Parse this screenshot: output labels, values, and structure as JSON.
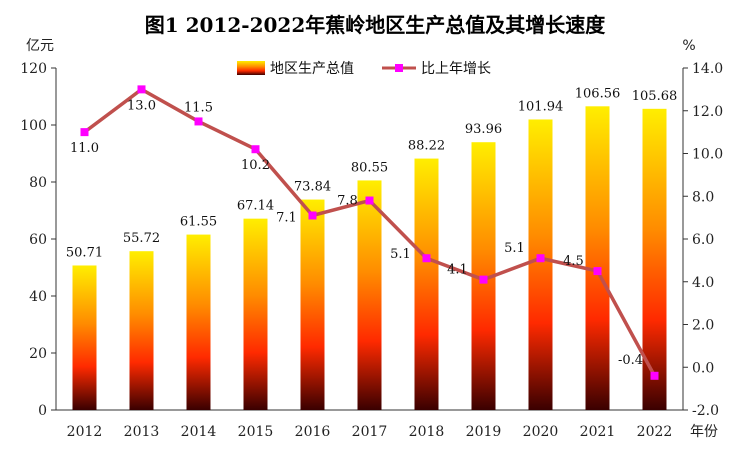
{
  "chart_data": {
    "type": "bar",
    "title": "图1   2012-2022年蕉岭地区生产总值及其增长速度",
    "categories": [
      "2012",
      "2013",
      "2014",
      "2015",
      "2016",
      "2017",
      "2018",
      "2019",
      "2020",
      "2021",
      "2022"
    ],
    "series": [
      {
        "name": "地区生产总值",
        "type": "bar",
        "axis": "left",
        "values": [
          50.71,
          55.72,
          61.55,
          67.14,
          73.84,
          80.55,
          88.22,
          93.96,
          101.94,
          106.56,
          105.68
        ],
        "labels": [
          "50.71",
          "55.72",
          "61.55",
          "67.14",
          "73.84",
          "80.55",
          "88.22",
          "93.96",
          "101.94",
          "106.56",
          "105.68"
        ]
      },
      {
        "name": "比上年增长",
        "type": "line",
        "axis": "right",
        "values": [
          11.0,
          13.0,
          11.5,
          10.2,
          7.1,
          7.8,
          5.1,
          4.1,
          5.1,
          4.5,
          -0.4
        ],
        "labels": [
          "11.0",
          "13.0",
          "11.5",
          "10.2",
          "7.1",
          "7.8",
          "5.1",
          "4.1",
          "5.1",
          "4.5",
          "-0.4"
        ]
      }
    ],
    "y_left": {
      "unit": "亿元",
      "min": 0,
      "max": 120,
      "step": 20,
      "ticks": [
        "0",
        "20",
        "40",
        "60",
        "80",
        "100",
        "120"
      ]
    },
    "y_right": {
      "unit": "%",
      "min": -2,
      "max": 14,
      "step": 2,
      "ticks": [
        "-2.0",
        "0.0",
        "2.0",
        "4.0",
        "6.0",
        "8.0",
        "10.0",
        "12.0",
        "14.0"
      ]
    },
    "x_unit": "年份",
    "legend_position": "top-right",
    "colors": {
      "bar_top": "#ffee00",
      "bar_mid": "#ff3300",
      "bar_bottom": "#3a0000",
      "line": "#c0504d",
      "marker": "#ff00ff",
      "axis": "#333333"
    }
  }
}
